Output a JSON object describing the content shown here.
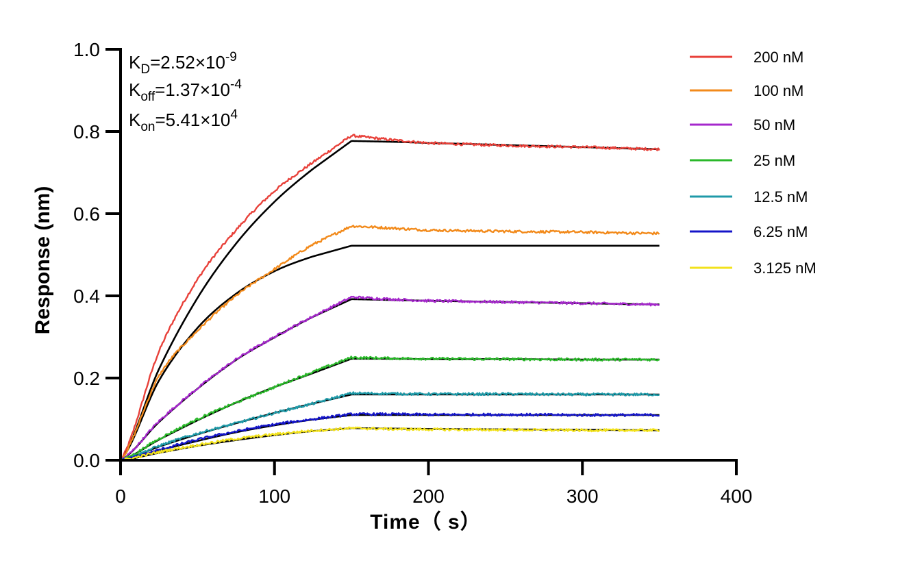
{
  "chart_data": {
    "type": "line",
    "title": "",
    "xlabel": "Time（ s）",
    "ylabel": "Response (nm)",
    "xlim": [
      0,
      400
    ],
    "ylim": [
      0,
      1.0
    ],
    "x_ticks": [
      "0",
      "100",
      "200",
      "300",
      "400"
    ],
    "y_ticks": [
      "0.0",
      "0.2",
      "0.4",
      "0.6",
      "0.8",
      "1.0"
    ],
    "grid": false,
    "legend_position": "top-right",
    "association_end_s": 150,
    "end_s": 350,
    "constants": [
      {
        "symbol": "K",
        "sub": "D",
        "mantissa": "2.52×10",
        "exponent": "-9"
      },
      {
        "symbol": "K",
        "sub": "off",
        "mantissa": "1.37×10",
        "exponent": "-4"
      },
      {
        "symbol": "K",
        "sub": "on",
        "mantissa": "5.41×10",
        "exponent": "4"
      }
    ],
    "series": [
      {
        "name": "200 nM",
        "color": "#e8413a",
        "x": [
          0,
          25,
          50,
          75,
          100,
          125,
          150,
          175,
          200,
          250,
          300,
          350
        ],
        "values": [
          0,
          0.265,
          0.44,
          0.56,
          0.655,
          0.725,
          0.79,
          0.78,
          0.772,
          0.766,
          0.762,
          0.757
        ],
        "fit_values": [
          0,
          0.222,
          0.395,
          0.527,
          0.629,
          0.709,
          0.777,
          0.775,
          0.772,
          0.767,
          0.762,
          0.757
        ]
      },
      {
        "name": "100 nM",
        "color": "#f28a1b",
        "x": [
          0,
          25,
          50,
          75,
          100,
          125,
          150,
          175,
          200,
          250,
          300,
          350
        ],
        "values": [
          0,
          0.205,
          0.315,
          0.4,
          0.465,
          0.525,
          0.57,
          0.565,
          0.56,
          0.557,
          0.555,
          0.552
        ],
        "fit_values": [
          0,
          0.194,
          0.322,
          0.405,
          0.46,
          0.496,
          0.522,
          0.522,
          0.522,
          0.522,
          0.522,
          0.522
        ]
      },
      {
        "name": "50 nM",
        "color": "#a528cc",
        "x": [
          0,
          25,
          50,
          75,
          100,
          125,
          150,
          175,
          200,
          250,
          300,
          350
        ],
        "values": [
          0,
          0.095,
          0.175,
          0.245,
          0.3,
          0.35,
          0.397,
          0.392,
          0.388,
          0.385,
          0.382,
          0.379
        ],
        "fit_values": [
          0,
          0.093,
          0.174,
          0.244,
          0.299,
          0.349,
          0.392,
          0.39,
          0.388,
          0.385,
          0.382,
          0.379
        ]
      },
      {
        "name": "25 nM",
        "color": "#2ab82a",
        "x": [
          0,
          25,
          50,
          75,
          100,
          125,
          150,
          175,
          200,
          250,
          300,
          350
        ],
        "values": [
          0,
          0.052,
          0.1,
          0.14,
          0.178,
          0.215,
          0.25,
          0.248,
          0.247,
          0.246,
          0.245,
          0.245
        ],
        "fit_values": [
          0,
          0.05,
          0.097,
          0.14,
          0.178,
          0.212,
          0.247,
          0.247,
          0.246,
          0.246,
          0.245,
          0.245
        ]
      },
      {
        "name": "12.5 nM",
        "color": "#1f9aa8",
        "x": [
          0,
          25,
          50,
          75,
          100,
          125,
          150,
          175,
          200,
          250,
          300,
          350
        ],
        "values": [
          0,
          0.035,
          0.065,
          0.09,
          0.115,
          0.138,
          0.163,
          0.162,
          0.161,
          0.161,
          0.16,
          0.16
        ],
        "fit_values": [
          0,
          0.033,
          0.063,
          0.09,
          0.115,
          0.138,
          0.16,
          0.16,
          0.16,
          0.16,
          0.16,
          0.16
        ]
      },
      {
        "name": "6.25 nM",
        "color": "#1414c8",
        "x": [
          0,
          25,
          50,
          75,
          100,
          125,
          150,
          175,
          200,
          250,
          300,
          350
        ],
        "values": [
          0,
          0.025,
          0.05,
          0.07,
          0.087,
          0.1,
          0.112,
          0.112,
          0.111,
          0.111,
          0.11,
          0.11
        ],
        "fit_values": [
          0,
          0.024,
          0.047,
          0.068,
          0.085,
          0.099,
          0.11,
          0.11,
          0.11,
          0.11,
          0.11,
          0.11
        ]
      },
      {
        "name": "3.125 nM",
        "color": "#f2e21c",
        "x": [
          0,
          25,
          50,
          75,
          100,
          125,
          150,
          175,
          200,
          250,
          300,
          350
        ],
        "values": [
          0,
          0.02,
          0.037,
          0.052,
          0.063,
          0.072,
          0.078,
          0.076,
          0.075,
          0.074,
          0.073,
          0.073
        ],
        "fit_values": [
          0,
          0.018,
          0.035,
          0.049,
          0.061,
          0.071,
          0.078,
          0.077,
          0.076,
          0.075,
          0.074,
          0.073
        ]
      }
    ],
    "fit_color": "#000000"
  }
}
